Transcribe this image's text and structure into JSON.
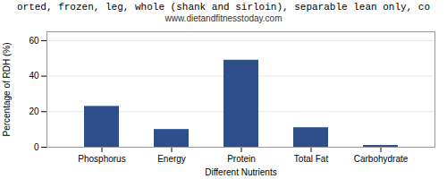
{
  "chart_data": {
    "type": "bar",
    "title": "orted, frozen, leg, whole (shank and sirloin), separable lean only, co",
    "subtitle": "www.dietandfitnesstoday.com",
    "categories": [
      "Phosphorus",
      "Energy",
      "Protein",
      "Total Fat",
      "Carbohydrate"
    ],
    "values": [
      23,
      10,
      49,
      11,
      1
    ],
    "color": "#2e4f8c",
    "xlabel": "Different Nutrients",
    "ylabel": "Percentage of RDH (%)",
    "ylim": [
      0,
      65
    ],
    "yticks": [
      0,
      20,
      40,
      60
    ],
    "grid": true
  }
}
